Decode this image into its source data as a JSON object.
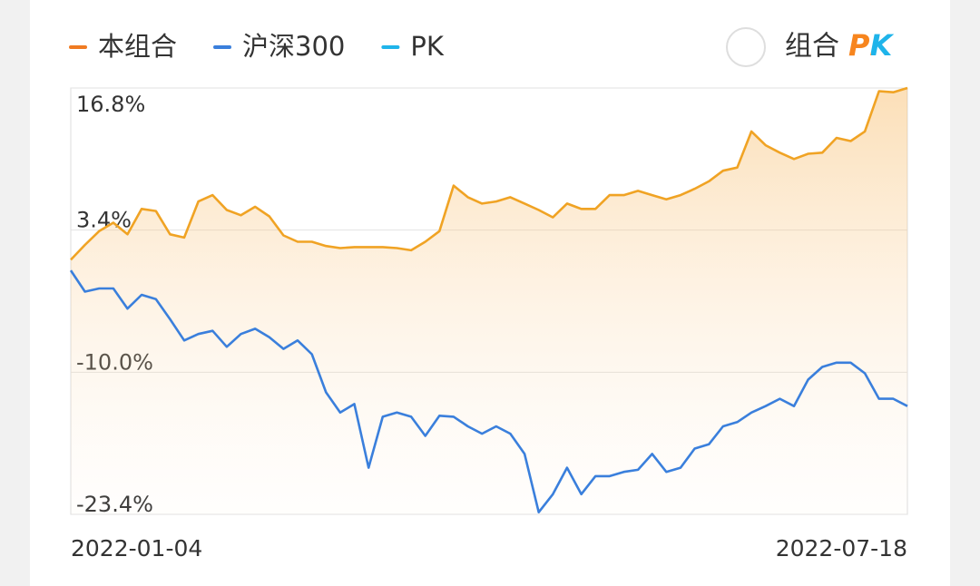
{
  "chart_data": {
    "type": "line",
    "legend": {
      "position": "top-left"
    },
    "toggle": {
      "label": "组合",
      "pk": "PK"
    },
    "categories": [
      "2022-01-04",
      null,
      null,
      null,
      null,
      null,
      null,
      null,
      null,
      null,
      null,
      null,
      null,
      null,
      null,
      null,
      null,
      null,
      null,
      null,
      null,
      null,
      null,
      null,
      null,
      null,
      null,
      null,
      null,
      null,
      null,
      null,
      null,
      null,
      null,
      null,
      null,
      null,
      null,
      null,
      null,
      null,
      null,
      null,
      null,
      null,
      null,
      null,
      null,
      null,
      null,
      null,
      null,
      null,
      null,
      null,
      null,
      null,
      null,
      "2022-07-18"
    ],
    "series": [
      {
        "name": "本组合",
        "color": "#f0a324",
        "legend_color": "#f07b22",
        "area": true,
        "values": [
          0.6,
          2.0,
          3.3,
          4.1,
          3.0,
          5.4,
          5.2,
          3.0,
          2.7,
          6.1,
          6.7,
          5.3,
          4.8,
          5.6,
          4.7,
          2.9,
          2.3,
          2.3,
          1.9,
          1.7,
          1.8,
          1.8,
          1.8,
          1.7,
          1.5,
          2.3,
          3.3,
          7.6,
          6.5,
          5.9,
          6.1,
          6.5,
          5.9,
          5.3,
          4.6,
          5.9,
          5.4,
          5.4,
          6.7,
          6.7,
          7.1,
          6.7,
          6.3,
          6.7,
          7.3,
          8.0,
          9.0,
          9.3,
          12.7,
          11.4,
          10.7,
          10.1,
          10.6,
          10.7,
          12.1,
          11.8,
          12.7,
          16.5,
          16.4,
          16.8
        ]
      },
      {
        "name": "沪深300",
        "color": "#3a7fdc",
        "values": [
          -0.4,
          -2.4,
          -2.1,
          -2.1,
          -4.0,
          -2.7,
          -3.1,
          -5.0,
          -7.0,
          -6.4,
          -6.1,
          -7.6,
          -6.4,
          -5.9,
          -6.7,
          -7.8,
          -7.0,
          -8.3,
          -11.9,
          -13.8,
          -13.0,
          -19.0,
          -14.2,
          -13.8,
          -14.2,
          -16.0,
          -14.1,
          -14.2,
          -15.1,
          -15.8,
          -15.1,
          -15.8,
          -17.7,
          -23.2,
          -21.5,
          -19.0,
          -21.5,
          -19.8,
          -19.8,
          -19.4,
          -19.2,
          -17.7,
          -19.4,
          -19.0,
          -17.2,
          -16.8,
          -15.1,
          -14.7,
          -13.8,
          -13.2,
          -12.5,
          -13.2,
          -10.7,
          -9.5,
          -9.1,
          -9.1,
          -10.1,
          -12.5,
          -12.5,
          -13.2
        ]
      },
      {
        "name": "PK",
        "color": "#1fb4ea",
        "values": [
          null,
          null,
          null,
          null,
          null,
          null,
          null,
          null,
          null,
          null,
          null,
          null,
          null,
          null,
          null,
          null,
          null,
          null,
          null,
          null,
          null,
          null,
          null,
          null,
          null,
          null,
          null,
          null,
          null,
          null,
          null,
          null,
          null,
          null,
          null,
          null,
          null,
          null,
          null,
          null,
          null,
          null,
          null,
          null,
          null,
          null,
          null,
          null,
          null,
          null,
          null,
          null,
          null,
          null,
          null,
          null,
          null,
          null,
          null,
          null
        ]
      }
    ],
    "ylim": [
      -23.4,
      16.8
    ],
    "yticks": [
      {
        "value": 16.8,
        "label": "16.8%"
      },
      {
        "value": 3.4,
        "label": "3.4%"
      },
      {
        "value": -10.0,
        "label": "-10.0%"
      },
      {
        "value": -23.4,
        "label": "-23.4%"
      }
    ],
    "grid": true
  }
}
